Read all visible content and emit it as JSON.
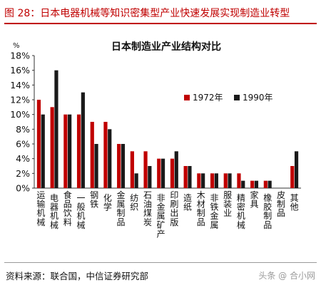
{
  "figure_title": "图 28：日本电器机械等知识密集型产业快速发展实现制造业转型",
  "source_text": "资料来源：联合国，中信证券研究部",
  "watermark": "头条 @ 合小网",
  "colors": {
    "s1972": "#c00000",
    "s1990": "#1a1a1a",
    "accent": "#c00000"
  },
  "chart_data": {
    "type": "bar",
    "title": "日本制造业产业结构对比",
    "ylabel": "%",
    "ylim": [
      0,
      18
    ],
    "yticks": [
      "0%",
      "2%",
      "4%",
      "6%",
      "8%",
      "10%",
      "12%",
      "14%",
      "16%",
      "18%"
    ],
    "legend_position": "right",
    "categories": [
      "运输机械",
      "电器机械",
      "食品饮料",
      "一般机械",
      "钢铁",
      "化学",
      "金属制品",
      "纺织",
      "石油煤炭",
      "非金属矿产",
      "印刷出版",
      "造纸",
      "木材制品",
      "非铁金属",
      "服装业",
      "精密机械",
      "家具",
      "橡胶制品",
      "皮制品",
      "其他"
    ],
    "series": [
      {
        "name": "1972年",
        "values": [
          12,
          11,
          10,
          10,
          9,
          9,
          6,
          5,
          5,
          4,
          4,
          3,
          2,
          2,
          2,
          2,
          1,
          1,
          0,
          3
        ]
      },
      {
        "name": "1990年",
        "values": [
          10,
          16,
          10,
          13,
          6,
          8,
          6,
          2,
          3,
          4,
          5,
          3,
          2,
          2,
          2,
          1,
          1,
          1,
          0,
          5
        ]
      }
    ]
  }
}
